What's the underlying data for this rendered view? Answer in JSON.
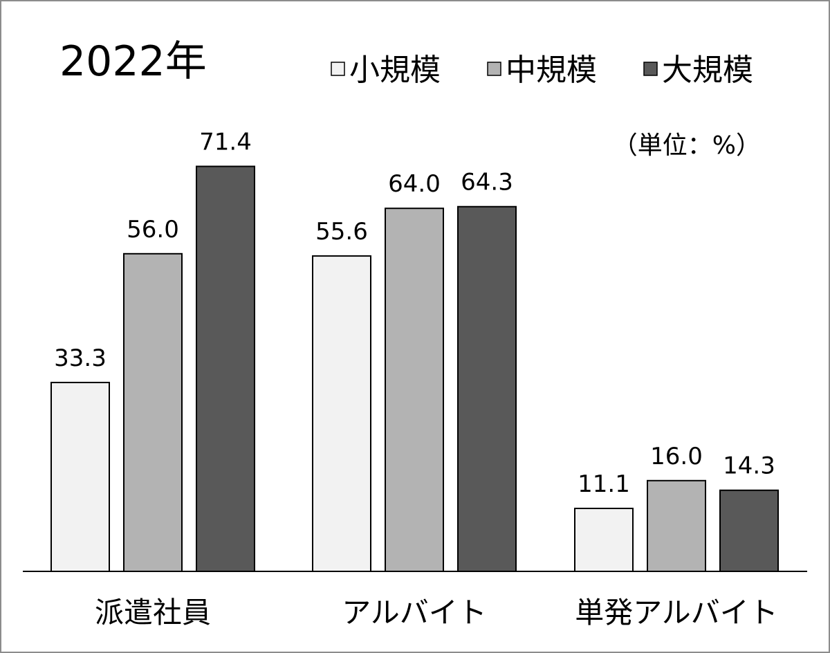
{
  "chart_data": {
    "type": "bar",
    "title": "2022年",
    "unit_note": "（単位：%）",
    "categories": [
      "派遣社員",
      "アルバイト",
      "単発アルバイト"
    ],
    "series": [
      {
        "name": "小規模",
        "color": "#f2f2f2",
        "values": [
          33.3,
          55.6,
          11.1
        ]
      },
      {
        "name": "中規模",
        "color": "#b3b3b3",
        "values": [
          56.0,
          64.0,
          16.0
        ]
      },
      {
        "name": "大規模",
        "color": "#595959",
        "values": [
          71.4,
          64.3,
          14.3
        ]
      }
    ],
    "value_labels": [
      [
        "33.3",
        "55.6",
        "11.1"
      ],
      [
        "56.0",
        "64.0",
        "16.0"
      ],
      [
        "71.4",
        "64.3",
        "14.3"
      ]
    ],
    "ylim": [
      0,
      100
    ],
    "grid": false,
    "legend_position": "top-right",
    "xlabel": "",
    "ylabel": ""
  }
}
